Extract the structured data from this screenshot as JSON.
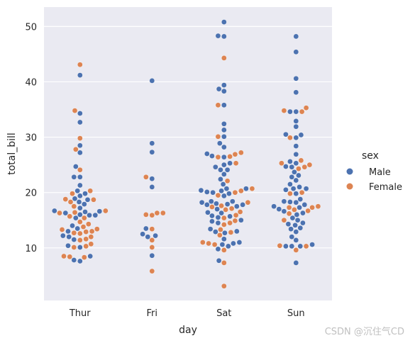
{
  "chart_data": {
    "type": "scatter",
    "subtype": "swarm",
    "xlabel": "day",
    "ylabel": "total_bill",
    "categories": [
      "Thur",
      "Fri",
      "Sat",
      "Sun"
    ],
    "ylim": [
      0.5,
      53.5
    ],
    "yticks": [
      10,
      20,
      30,
      40,
      50
    ],
    "grid": true,
    "legend": {
      "title": "sex",
      "placement": "right",
      "entries": [
        "Male",
        "Female"
      ]
    },
    "colors": {
      "Male": "#4c72b0",
      "Female": "#dd8452",
      "background": "#eaeaf2",
      "grid": "#ffffff"
    },
    "series": [
      {
        "name": "Male",
        "points": [
          [
            "Thur",
            41.2
          ],
          [
            "Thur",
            34.3
          ],
          [
            "Thur",
            32.7
          ],
          [
            "Thur",
            28.5
          ],
          [
            "Thur",
            27.2
          ],
          [
            "Thur",
            24.7
          ],
          [
            "Thur",
            22.8
          ],
          [
            "Thur",
            22.8
          ],
          [
            "Thur",
            21.3
          ],
          [
            "Thur",
            20.3
          ],
          [
            "Thur",
            19.8
          ],
          [
            "Thur",
            19.4
          ],
          [
            "Thur",
            18.9
          ],
          [
            "Thur",
            18.7
          ],
          [
            "Thur",
            18.3
          ],
          [
            "Thur",
            17.9
          ],
          [
            "Thur",
            17.2
          ],
          [
            "Thur",
            16.7
          ],
          [
            "Thur",
            16.6
          ],
          [
            "Thur",
            16.5
          ],
          [
            "Thur",
            16.3
          ],
          [
            "Thur",
            16.0
          ],
          [
            "Thur",
            15.9
          ],
          [
            "Thur",
            15.9
          ],
          [
            "Thur",
            15.4
          ],
          [
            "Thur",
            14.0
          ],
          [
            "Thur",
            13.5
          ],
          [
            "Thur",
            13.0
          ],
          [
            "Thur",
            12.2
          ],
          [
            "Thur",
            12.0
          ],
          [
            "Thur",
            11.5
          ],
          [
            "Thur",
            10.4
          ],
          [
            "Thur",
            10.1
          ],
          [
            "Thur",
            8.5
          ],
          [
            "Thur",
            7.8
          ],
          [
            "Thur",
            7.6
          ],
          [
            "Fri",
            40.2
          ],
          [
            "Fri",
            28.9
          ],
          [
            "Fri",
            27.3
          ],
          [
            "Fri",
            22.5
          ],
          [
            "Fri",
            21.0
          ],
          [
            "Fri",
            13.5
          ],
          [
            "Fri",
            12.5
          ],
          [
            "Fri",
            12.2
          ],
          [
            "Fri",
            12.0
          ],
          [
            "Fri",
            8.6
          ],
          [
            "Sat",
            50.8
          ],
          [
            "Sat",
            48.3
          ],
          [
            "Sat",
            48.2
          ],
          [
            "Sat",
            39.4
          ],
          [
            "Sat",
            38.7
          ],
          [
            "Sat",
            38.3
          ],
          [
            "Sat",
            35.8
          ],
          [
            "Sat",
            32.4
          ],
          [
            "Sat",
            31.3
          ],
          [
            "Sat",
            30.1
          ],
          [
            "Sat",
            28.9
          ],
          [
            "Sat",
            28.2
          ],
          [
            "Sat",
            27.0
          ],
          [
            "Sat",
            26.6
          ],
          [
            "Sat",
            26.4
          ],
          [
            "Sat",
            25.3
          ],
          [
            "Sat",
            25.0
          ],
          [
            "Sat",
            24.6
          ],
          [
            "Sat",
            24.1
          ],
          [
            "Sat",
            24.1
          ],
          [
            "Sat",
            23.3
          ],
          [
            "Sat",
            22.4
          ],
          [
            "Sat",
            21.5
          ],
          [
            "Sat",
            20.7
          ],
          [
            "Sat",
            20.7
          ],
          [
            "Sat",
            20.4
          ],
          [
            "Sat",
            20.3
          ],
          [
            "Sat",
            20.1
          ],
          [
            "Sat",
            20.0
          ],
          [
            "Sat",
            19.8
          ],
          [
            "Sat",
            19.4
          ],
          [
            "Sat",
            18.4
          ],
          [
            "Sat",
            18.4
          ],
          [
            "Sat",
            18.2
          ],
          [
            "Sat",
            18.0
          ],
          [
            "Sat",
            17.9
          ],
          [
            "Sat",
            17.8
          ],
          [
            "Sat",
            17.8
          ],
          [
            "Sat",
            17.5
          ],
          [
            "Sat",
            17.0
          ],
          [
            "Sat",
            16.4
          ],
          [
            "Sat",
            16.3
          ],
          [
            "Sat",
            15.8
          ],
          [
            "Sat",
            15.7
          ],
          [
            "Sat",
            15.5
          ],
          [
            "Sat",
            15.0
          ],
          [
            "Sat",
            14.8
          ],
          [
            "Sat",
            14.5
          ],
          [
            "Sat",
            13.4
          ],
          [
            "Sat",
            13.0
          ],
          [
            "Sat",
            12.9
          ],
          [
            "Sat",
            12.7
          ],
          [
            "Sat",
            11.6
          ],
          [
            "Sat",
            11.0
          ],
          [
            "Sat",
            10.8
          ],
          [
            "Sat",
            10.6
          ],
          [
            "Sat",
            10.3
          ],
          [
            "Sat",
            9.8
          ],
          [
            "Sat",
            7.7
          ],
          [
            "Sun",
            48.2
          ],
          [
            "Sun",
            45.4
          ],
          [
            "Sun",
            40.6
          ],
          [
            "Sun",
            38.1
          ],
          [
            "Sun",
            34.6
          ],
          [
            "Sun",
            34.6
          ],
          [
            "Sun",
            32.9
          ],
          [
            "Sun",
            31.9
          ],
          [
            "Sun",
            30.5
          ],
          [
            "Sun",
            30.4
          ],
          [
            "Sun",
            29.9
          ],
          [
            "Sun",
            28.4
          ],
          [
            "Sun",
            26.9
          ],
          [
            "Sun",
            25.6
          ],
          [
            "Sun",
            25.3
          ],
          [
            "Sun",
            24.7
          ],
          [
            "Sun",
            24.6
          ],
          [
            "Sun",
            23.7
          ],
          [
            "Sun",
            23.1
          ],
          [
            "Sun",
            22.8
          ],
          [
            "Sun",
            22.2
          ],
          [
            "Sun",
            21.5
          ],
          [
            "Sun",
            21.0
          ],
          [
            "Sun",
            20.7
          ],
          [
            "Sun",
            20.7
          ],
          [
            "Sun",
            20.5
          ],
          [
            "Sun",
            19.8
          ],
          [
            "Sun",
            18.8
          ],
          [
            "Sun",
            18.4
          ],
          [
            "Sun",
            18.3
          ],
          [
            "Sun",
            18.2
          ],
          [
            "Sun",
            17.8
          ],
          [
            "Sun",
            17.5
          ],
          [
            "Sun",
            17.3
          ],
          [
            "Sun",
            17.0
          ],
          [
            "Sun",
            16.6
          ],
          [
            "Sun",
            16.3
          ],
          [
            "Sun",
            16.0
          ],
          [
            "Sun",
            15.4
          ],
          [
            "Sun",
            15.0
          ],
          [
            "Sun",
            14.5
          ],
          [
            "Sun",
            14.3
          ],
          [
            "Sun",
            14.1
          ],
          [
            "Sun",
            13.6
          ],
          [
            "Sun",
            13.4
          ],
          [
            "Sun",
            12.9
          ],
          [
            "Sun",
            12.0
          ],
          [
            "Sun",
            11.4
          ],
          [
            "Sun",
            10.6
          ],
          [
            "Sun",
            10.3
          ],
          [
            "Sun",
            10.3
          ],
          [
            "Sun",
            10.3
          ],
          [
            "Sun",
            7.3
          ]
        ]
      },
      {
        "name": "Female",
        "points": [
          [
            "Thur",
            43.1
          ],
          [
            "Thur",
            34.8
          ],
          [
            "Thur",
            29.8
          ],
          [
            "Thur",
            27.8
          ],
          [
            "Thur",
            24.1
          ],
          [
            "Thur",
            20.3
          ],
          [
            "Thur",
            19.8
          ],
          [
            "Thur",
            18.8
          ],
          [
            "Thur",
            18.7
          ],
          [
            "Thur",
            18.3
          ],
          [
            "Thur",
            17.5
          ],
          [
            "Thur",
            16.7
          ],
          [
            "Thur",
            16.4
          ],
          [
            "Thur",
            16.3
          ],
          [
            "Thur",
            15.7
          ],
          [
            "Thur",
            15.4
          ],
          [
            "Thur",
            14.7
          ],
          [
            "Thur",
            14.3
          ],
          [
            "Thur",
            13.8
          ],
          [
            "Thur",
            13.4
          ],
          [
            "Thur",
            13.3
          ],
          [
            "Thur",
            13.0
          ],
          [
            "Thur",
            12.9
          ],
          [
            "Thur",
            12.7
          ],
          [
            "Thur",
            12.6
          ],
          [
            "Thur",
            12.0
          ],
          [
            "Thur",
            11.6
          ],
          [
            "Thur",
            11.4
          ],
          [
            "Thur",
            10.7
          ],
          [
            "Thur",
            10.3
          ],
          [
            "Thur",
            10.1
          ],
          [
            "Thur",
            8.5
          ],
          [
            "Thur",
            8.4
          ],
          [
            "Thur",
            8.3
          ],
          [
            "Fri",
            22.8
          ],
          [
            "Fri",
            16.3
          ],
          [
            "Fri",
            16.3
          ],
          [
            "Fri",
            16.0
          ],
          [
            "Fri",
            15.9
          ],
          [
            "Fri",
            13.4
          ],
          [
            "Fri",
            11.4
          ],
          [
            "Fri",
            10.1
          ],
          [
            "Fri",
            5.8
          ],
          [
            "Sat",
            44.3
          ],
          [
            "Sat",
            35.8
          ],
          [
            "Sat",
            30.1
          ],
          [
            "Sat",
            27.2
          ],
          [
            "Sat",
            26.9
          ],
          [
            "Sat",
            26.5
          ],
          [
            "Sat",
            26.4
          ],
          [
            "Sat",
            25.3
          ],
          [
            "Sat",
            22.1
          ],
          [
            "Sat",
            20.7
          ],
          [
            "Sat",
            20.3
          ],
          [
            "Sat",
            20.0
          ],
          [
            "Sat",
            19.5
          ],
          [
            "Sat",
            18.2
          ],
          [
            "Sat",
            17.6
          ],
          [
            "Sat",
            17.4
          ],
          [
            "Sat",
            17.1
          ],
          [
            "Sat",
            16.9
          ],
          [
            "Sat",
            16.5
          ],
          [
            "Sat",
            15.9
          ],
          [
            "Sat",
            15.4
          ],
          [
            "Sat",
            14.9
          ],
          [
            "Sat",
            14.5
          ],
          [
            "Sat",
            14.2
          ],
          [
            "Sat",
            13.3
          ],
          [
            "Sat",
            12.8
          ],
          [
            "Sat",
            12.3
          ],
          [
            "Sat",
            11.0
          ],
          [
            "Sat",
            10.8
          ],
          [
            "Sat",
            10.6
          ],
          [
            "Sat",
            9.6
          ],
          [
            "Sat",
            7.3
          ],
          [
            "Sat",
            3.1
          ],
          [
            "Sun",
            35.3
          ],
          [
            "Sun",
            34.8
          ],
          [
            "Sun",
            34.6
          ],
          [
            "Sun",
            29.9
          ],
          [
            "Sun",
            25.8
          ],
          [
            "Sun",
            25.3
          ],
          [
            "Sun",
            25.0
          ],
          [
            "Sun",
            24.6
          ],
          [
            "Sun",
            24.3
          ],
          [
            "Sun",
            20.0
          ],
          [
            "Sun",
            19.8
          ],
          [
            "Sun",
            17.5
          ],
          [
            "Sun",
            17.3
          ],
          [
            "Sun",
            17.3
          ],
          [
            "Sun",
            16.9
          ],
          [
            "Sun",
            16.7
          ],
          [
            "Sun",
            16.2
          ],
          [
            "Sun",
            15.0
          ],
          [
            "Sun",
            10.4
          ],
          [
            "Sun",
            10.3
          ],
          [
            "Sun",
            9.6
          ]
        ]
      }
    ]
  },
  "watermark": "CSDN @沉住气CD"
}
